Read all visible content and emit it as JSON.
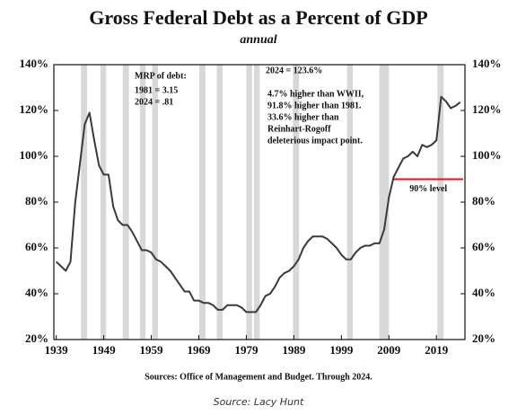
{
  "chart_data": {
    "type": "line",
    "title": "Gross Federal Debt as a Percent of GDP",
    "subtitle": "annual",
    "source": "Sources: Office of Management and Budget. Through 2024.",
    "caption": "Source: Lacy Hunt",
    "x": [
      1939,
      1940,
      1941,
      1942,
      1943,
      1944,
      1945,
      1946,
      1947,
      1948,
      1949,
      1950,
      1951,
      1952,
      1953,
      1954,
      1955,
      1956,
      1957,
      1958,
      1959,
      1960,
      1961,
      1962,
      1963,
      1964,
      1965,
      1966,
      1967,
      1968,
      1969,
      1970,
      1971,
      1972,
      1973,
      1974,
      1975,
      1976,
      1977,
      1978,
      1979,
      1980,
      1981,
      1982,
      1983,
      1984,
      1985,
      1986,
      1987,
      1988,
      1989,
      1990,
      1991,
      1992,
      1993,
      1994,
      1995,
      1996,
      1997,
      1998,
      1999,
      2000,
      2001,
      2002,
      2003,
      2004,
      2005,
      2006,
      2007,
      2008,
      2009,
      2010,
      2011,
      2012,
      2013,
      2014,
      2015,
      2016,
      2017,
      2018,
      2019,
      2020,
      2021,
      2022,
      2023,
      2024
    ],
    "series": [
      {
        "name": "Gross Federal Debt % of GDP",
        "color": "#3a3a3a",
        "values": [
          54,
          52,
          50,
          54,
          80,
          97,
          114,
          119,
          107,
          96,
          92,
          92,
          78,
          72,
          70,
          70,
          67,
          63,
          59,
          59,
          58,
          55,
          54,
          52,
          50,
          47,
          44,
          41,
          41,
          37,
          37,
          36,
          36,
          35,
          33,
          33,
          35,
          35,
          35,
          34,
          32,
          32,
          32,
          35,
          39,
          40,
          43,
          47,
          49,
          50,
          52,
          55,
          60,
          63,
          65,
          65,
          65,
          64,
          62,
          60,
          57,
          55,
          55,
          58,
          60,
          61,
          61,
          62,
          62,
          68,
          82,
          91,
          95,
          99,
          100,
          102,
          100,
          105,
          104,
          105,
          107,
          126,
          124,
          121,
          122,
          123.6
        ]
      }
    ],
    "xlim": [
      1938.5,
      2025
    ],
    "xticks": [
      1939,
      1949,
      1959,
      1969,
      1979,
      1989,
      1999,
      2009,
      2019
    ],
    "ylim": [
      20,
      140
    ],
    "yticks": [
      {
        "value": 20,
        "label": "20%"
      },
      {
        "value": 40,
        "label": "40%"
      },
      {
        "value": 60,
        "label": "60%"
      },
      {
        "value": 80,
        "label": "80%"
      },
      {
        "value": 100,
        "label": "100%"
      },
      {
        "value": 120,
        "label": "120%"
      },
      {
        "value": 140,
        "label": "140%"
      }
    ],
    "y2lim": [
      20,
      140
    ],
    "y2ticks": [
      {
        "value": 20,
        "label": "20%"
      },
      {
        "value": 40,
        "label": "40%"
      },
      {
        "value": 60,
        "label": "60%"
      },
      {
        "value": 80,
        "label": "80%"
      },
      {
        "value": 100,
        "label": "100%"
      },
      {
        "value": 120,
        "label": "120%"
      },
      {
        "value": 140,
        "label": "140%"
      }
    ],
    "shaded_periods": [
      [
        1944.2,
        1945.5
      ],
      [
        1948.3,
        1949.5
      ],
      [
        1953,
        1954.3
      ],
      [
        1956.6,
        1957.8
      ],
      [
        1959.2,
        1960.4
      ],
      [
        1969.1,
        1970.4
      ],
      [
        1972.8,
        1974
      ],
      [
        1979,
        1980.2
      ],
      [
        1980.6,
        1981.8
      ],
      [
        1988.8,
        1990.1
      ],
      [
        2000.2,
        2001.4
      ],
      [
        2007,
        2009
      ],
      [
        2019.2,
        2020.5
      ]
    ],
    "shade_color": "#d8d8d8",
    "reference_line": {
      "value": 90,
      "label": "90% level",
      "color": "#e0141e",
      "x_range": [
        2010,
        2024.6
      ]
    },
    "annotations": [
      "MRP of debt:",
      "1981 = 3.15",
      "2024 = .81",
      "2024 = 123.6%",
      "4.7% higher than WWII,",
      "91.8% higher than 1981.",
      "33.6% higher than",
      "Reinhart-Rogoff",
      "deleterious impact point."
    ]
  }
}
